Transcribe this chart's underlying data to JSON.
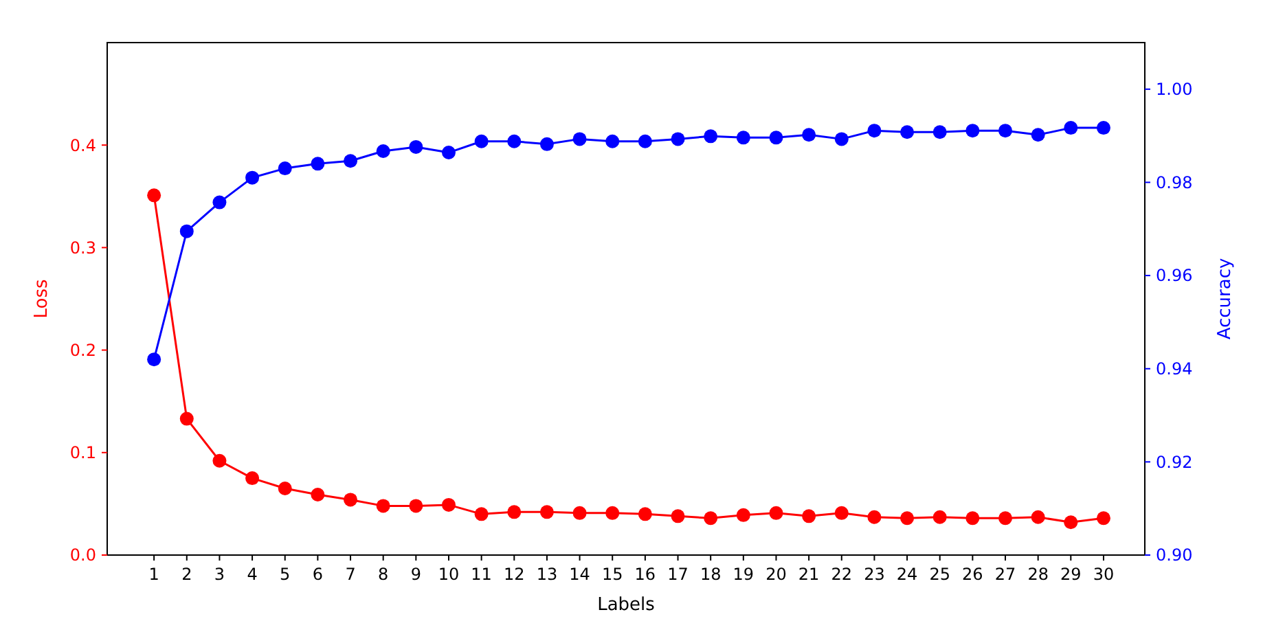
{
  "chart_data": {
    "type": "line",
    "xlabel": "Labels",
    "ylabel": "Loss",
    "y2label": "Accuracy",
    "x": [
      1,
      2,
      3,
      4,
      5,
      6,
      7,
      8,
      9,
      10,
      11,
      12,
      13,
      14,
      15,
      16,
      17,
      18,
      19,
      20,
      21,
      22,
      23,
      24,
      25,
      26,
      27,
      28,
      29,
      30
    ],
    "xlim": [
      -0.43,
      31.26
    ],
    "xticks": [
      1,
      2,
      3,
      4,
      5,
      6,
      7,
      8,
      9,
      10,
      11,
      12,
      13,
      14,
      15,
      16,
      17,
      18,
      19,
      20,
      21,
      22,
      23,
      24,
      25,
      26,
      27,
      28,
      29,
      30
    ],
    "ylim": [
      0,
      0.5
    ],
    "yticks": [
      {
        "value": 0,
        "label": "0.0"
      },
      0.1,
      0.2,
      0.3,
      0.4
    ],
    "y2lim": [
      0.9,
      1.01
    ],
    "y2ticks": [
      {
        "value": 0.9,
        "label": "0.90"
      },
      {
        "value": 0.92,
        "label": "0.92"
      },
      {
        "value": 0.94,
        "label": "0.94"
      },
      {
        "value": 0.96,
        "label": "0.96"
      },
      {
        "value": 0.98,
        "label": "0.98"
      },
      {
        "value": 1.0,
        "label": "1.00"
      }
    ],
    "marker": "circle",
    "grid": false,
    "series": [
      {
        "color": "#ff0000",
        "values": [
          0.351,
          0.133,
          0.092,
          0.075,
          0.065,
          0.059,
          0.054,
          0.048,
          0.048,
          0.049,
          0.04,
          0.042,
          0.042,
          0.041,
          0.041,
          0.04,
          0.038,
          0.036,
          0.039,
          0.041,
          0.038,
          0.041,
          0.037,
          0.036,
          0.037,
          0.036,
          0.036,
          0.037,
          0.032,
          0.036
        ]
      },
      {
        "color": "#0000ff",
        "axis": "y2",
        "values": [
          0.942,
          0.9695,
          0.9757,
          0.981,
          0.983,
          0.984,
          0.9846,
          0.9867,
          0.9876,
          0.9864,
          0.9888,
          0.9888,
          0.9882,
          0.9893,
          0.9888,
          0.9888,
          0.9893,
          0.9899,
          0.9896,
          0.9896,
          0.9902,
          0.9893,
          0.9911,
          0.9908,
          0.9908,
          0.9911,
          0.9911,
          0.9902,
          0.9917,
          0.9917
        ]
      }
    ]
  }
}
